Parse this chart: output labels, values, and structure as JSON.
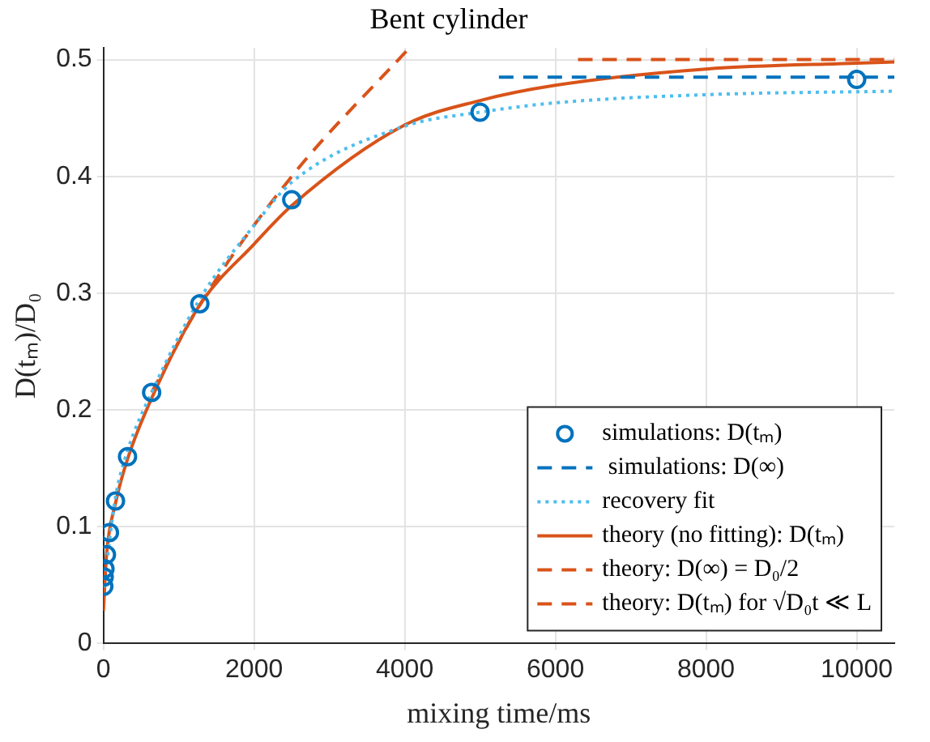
{
  "chart_data": {
    "type": "line",
    "title": "Bent cylinder",
    "xlabel": "mixing time/ms",
    "ylabel": "D(tₘ)/D₀",
    "xlim": [
      0,
      10500
    ],
    "xticks": [
      0,
      2000,
      4000,
      6000,
      8000,
      10000
    ],
    "ylim": [
      0,
      0.51
    ],
    "yticks": [
      0,
      0.1,
      0.2,
      0.3,
      0.4,
      0.5
    ],
    "grid": true,
    "legend": "bottom right",
    "series": [
      {
        "name": "simulations: D(tₘ)",
        "type": "scatter",
        "marker": "circle",
        "color": "#0072bd",
        "x": [
          5,
          10,
          20,
          40,
          80,
          160,
          320,
          640,
          1280,
          2500,
          5000,
          10000
        ],
        "values": [
          0.049,
          0.057,
          0.064,
          0.076,
          0.095,
          0.122,
          0.16,
          0.215,
          0.291,
          0.38,
          0.455,
          0.483
        ]
      },
      {
        "name": " simulations: D(∞)",
        "type": "line",
        "marker": "none",
        "line_style": "dashed",
        "color": "#0072bd",
        "x": [
          5250,
          10500
        ],
        "values": [
          0.485,
          0.485
        ]
      },
      {
        "name": "recovery fit",
        "type": "line",
        "marker": "none",
        "line_style": "dotted",
        "color": "#4dbeee",
        "x": [
          5,
          160,
          320,
          640,
          1280,
          2000,
          2500,
          4000,
          5000,
          6000,
          8000,
          10500
        ],
        "values": [
          0.048,
          0.125,
          0.165,
          0.215,
          0.295,
          0.358,
          0.395,
          0.443,
          0.455,
          0.463,
          0.47,
          0.473
        ]
      },
      {
        "name": "theory (no fitting): D(tₘ)",
        "type": "line",
        "marker": "none",
        "line_style": "solid",
        "color": "#d95319",
        "x": [
          0,
          40,
          160,
          320,
          640,
          1280,
          2000,
          2500,
          4000,
          5000,
          6000,
          8000,
          10000,
          10500
        ],
        "values": [
          0.028,
          0.075,
          0.12,
          0.158,
          0.21,
          0.29,
          0.342,
          0.375,
          0.444,
          0.465,
          0.478,
          0.492,
          0.497,
          0.498
        ]
      },
      {
        "name": "theory: D(∞) = D₀/2",
        "type": "line",
        "marker": "none",
        "line_style": "dashed",
        "color": "#d95319",
        "x": [
          6300,
          10500
        ],
        "values": [
          0.5,
          0.5
        ]
      },
      {
        "name": "theory: D(tₘ) for √D₀t ≪ L",
        "type": "line",
        "marker": "none",
        "line_style": "dashed",
        "color": "#d95319",
        "x": [
          640,
          1280,
          2500,
          4060
        ],
        "values": [
          0.215,
          0.29,
          0.4,
          0.51
        ]
      }
    ]
  }
}
